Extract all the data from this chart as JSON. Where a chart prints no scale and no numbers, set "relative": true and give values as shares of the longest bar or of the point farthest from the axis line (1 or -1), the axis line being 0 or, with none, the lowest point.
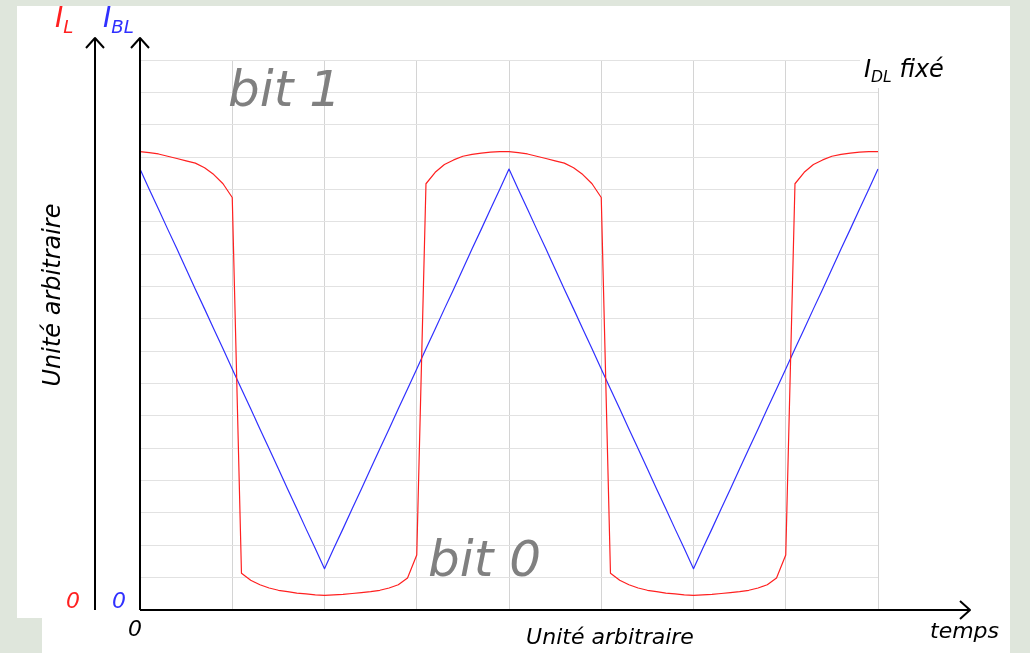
{
  "chart_data": {
    "type": "line",
    "relative": true,
    "xlabel": "Unité arbitraire",
    "ylabel": "Unité arbitraire",
    "grid": true,
    "marker": "none",
    "categories": [
      null,
      null,
      null,
      null,
      null,
      null,
      null,
      null,
      null,
      null,
      null,
      null,
      null,
      null,
      null,
      null,
      null,
      null,
      null,
      null,
      null,
      null,
      null,
      null,
      null,
      null,
      null,
      null,
      null,
      null,
      null,
      null,
      null,
      null,
      null,
      null,
      null,
      null,
      null,
      null,
      null,
      null,
      null,
      null,
      null,
      null,
      null,
      null,
      null,
      null,
      null,
      null,
      null,
      null,
      null,
      null,
      null,
      null,
      null,
      null,
      null,
      null,
      null,
      null,
      null,
      null,
      null,
      null,
      null,
      null,
      null,
      null,
      null,
      null,
      null,
      null,
      null,
      null,
      null,
      null,
      null
    ],
    "series": [
      {
        "name": "I$_{L}$",
        "color": "#ff2020",
        "values": [
          1.0,
          0.998,
          0.995,
          0.99,
          0.985,
          0.98,
          0.975,
          0.965,
          0.95,
          0.93,
          0.9,
          0.08,
          0.065,
          0.055,
          0.048,
          0.043,
          0.04,
          0.037,
          0.035,
          0.033,
          0.032,
          0.033,
          0.034,
          0.036,
          0.038,
          0.04,
          0.043,
          0.048,
          0.055,
          0.07,
          0.12,
          0.93,
          0.955,
          0.972,
          0.982,
          0.99,
          0.994,
          0.997,
          0.999,
          1.0,
          1.0,
          0.998,
          0.995,
          0.99,
          0.985,
          0.98,
          0.975,
          0.965,
          0.95,
          0.93,
          0.9,
          0.08,
          0.065,
          0.055,
          0.048,
          0.043,
          0.04,
          0.037,
          0.035,
          0.033,
          0.032,
          0.033,
          0.034,
          0.036,
          0.038,
          0.04,
          0.043,
          0.048,
          0.055,
          0.07,
          0.12,
          0.93,
          0.955,
          0.972,
          0.982,
          0.99,
          0.994,
          0.997,
          0.999,
          1.0,
          1.0
        ]
      },
      {
        "name": "I$_{BL}$",
        "color": "#3030ff",
        "values": [
          0.962,
          0.918,
          0.875,
          0.831,
          0.788,
          0.744,
          0.7,
          0.657,
          0.613,
          0.57,
          0.526,
          0.482,
          0.439,
          0.395,
          0.352,
          0.308,
          0.264,
          0.221,
          0.177,
          0.134,
          0.09,
          0.134,
          0.177,
          0.221,
          0.264,
          0.308,
          0.352,
          0.395,
          0.439,
          0.482,
          0.526,
          0.57,
          0.613,
          0.657,
          0.7,
          0.744,
          0.788,
          0.831,
          0.875,
          0.918,
          0.962,
          0.918,
          0.875,
          0.831,
          0.788,
          0.744,
          0.7,
          0.657,
          0.613,
          0.57,
          0.526,
          0.482,
          0.439,
          0.395,
          0.352,
          0.308,
          0.264,
          0.221,
          0.177,
          0.134,
          0.09,
          0.134,
          0.177,
          0.221,
          0.264,
          0.308,
          0.352,
          0.395,
          0.439,
          0.482,
          0.526,
          0.57,
          0.613,
          0.657,
          0.7,
          0.744,
          0.788,
          0.831,
          0.875,
          0.918,
          0.962
        ]
      }
    ],
    "annotations": [
      "bit 1",
      "bit 0",
      "I$_{DL}$ fixé",
      "temps",
      "0",
      "0",
      "0"
    ]
  }
}
